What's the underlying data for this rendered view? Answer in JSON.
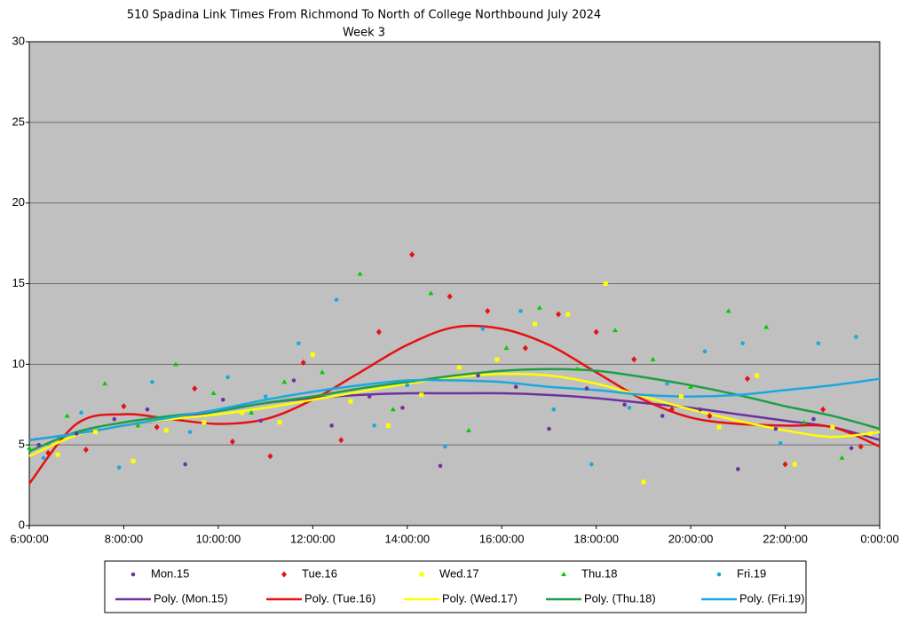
{
  "chart_data": {
    "type": "scatter",
    "title": "510 Spadina Link Times From Richmond To North of College Northbound July 2024",
    "subtitle": "Week 3",
    "xlim": [
      6,
      24
    ],
    "xticks": [
      {
        "value": 6,
        "label": "6:00:00"
      },
      {
        "value": 8,
        "label": "8:00:00"
      },
      {
        "value": 10,
        "label": "10:00:00"
      },
      {
        "value": 12,
        "label": "12:00:00"
      },
      {
        "value": 14,
        "label": "14:00:00"
      },
      {
        "value": 16,
        "label": "16:00:00"
      },
      {
        "value": 18,
        "label": "18:00:00"
      },
      {
        "value": 20,
        "label": "20:00:00"
      },
      {
        "value": 22,
        "label": "22:00:00"
      },
      {
        "value": 24,
        "label": "0:00:00"
      }
    ],
    "ylim": [
      0,
      30
    ],
    "yticks": [
      0,
      5,
      10,
      15,
      20,
      25,
      30
    ],
    "grid": true,
    "legend": "bottom",
    "series": [
      {
        "name": "Mon.15",
        "type": "scatter",
        "marker": "circle",
        "color": "#7030a0",
        "x": [
          6.2,
          7.0,
          7.8,
          8.5,
          9.3,
          10.1,
          10.9,
          11.6,
          12.4,
          13.2,
          13.9,
          14.7,
          15.5,
          16.3,
          17.0,
          17.8,
          18.6,
          19.4,
          20.2,
          21.0,
          21.8,
          22.6,
          23.4
        ],
        "values": [
          5.0,
          5.7,
          6.6,
          7.2,
          3.8,
          7.8,
          6.5,
          9.0,
          6.2,
          8.0,
          7.3,
          3.7,
          9.3,
          8.6,
          6.0,
          8.5,
          7.5,
          6.8,
          7.2,
          3.5,
          6.0,
          6.6,
          4.8
        ]
      },
      {
        "name": "Tue.16",
        "type": "scatter",
        "marker": "diamond",
        "color": "#e81010",
        "x": [
          6.4,
          7.2,
          8.0,
          8.7,
          9.5,
          10.3,
          11.1,
          11.8,
          12.6,
          13.4,
          14.1,
          14.9,
          15.7,
          16.5,
          17.2,
          18.0,
          18.8,
          19.6,
          20.4,
          21.2,
          22.0,
          22.8,
          23.6
        ],
        "values": [
          4.5,
          4.7,
          7.4,
          6.1,
          8.5,
          5.2,
          4.3,
          10.1,
          5.3,
          12.0,
          16.8,
          14.2,
          13.3,
          11.0,
          13.1,
          12.0,
          10.3,
          7.2,
          6.8,
          9.1,
          3.8,
          7.2,
          4.9
        ]
      },
      {
        "name": "Wed.17",
        "type": "scatter",
        "marker": "square",
        "color": "#ffff00",
        "x": [
          6.6,
          7.4,
          8.2,
          8.9,
          9.7,
          10.5,
          11.3,
          12.0,
          12.8,
          13.6,
          14.3,
          15.1,
          15.9,
          16.7,
          17.4,
          18.2,
          19.0,
          19.8,
          20.6,
          21.4,
          22.2,
          23.0,
          23.8
        ],
        "values": [
          4.4,
          5.8,
          4.0,
          5.9,
          6.4,
          7.0,
          6.4,
          10.6,
          7.7,
          6.2,
          8.1,
          9.8,
          10.3,
          12.5,
          13.1,
          15.0,
          2.7,
          8.0,
          6.1,
          9.3,
          3.8,
          6.1,
          5.7
        ]
      },
      {
        "name": "Thu.18",
        "type": "scatter",
        "marker": "triangle",
        "color": "#00cc00",
        "x": [
          6.0,
          6.8,
          7.6,
          8.3,
          9.1,
          9.9,
          10.7,
          11.4,
          12.2,
          13.0,
          13.7,
          14.5,
          15.3,
          16.1,
          16.8,
          17.6,
          18.4,
          19.2,
          20.0,
          20.8,
          21.6,
          22.4,
          23.2
        ],
        "values": [
          4.8,
          6.8,
          8.8,
          6.2,
          10.0,
          8.2,
          7.0,
          8.9,
          9.5,
          15.6,
          7.2,
          14.4,
          5.9,
          11.0,
          13.5,
          9.7,
          12.1,
          10.3,
          8.6,
          13.3,
          12.3,
          6.4,
          4.2
        ]
      },
      {
        "name": "Fri.19",
        "type": "scatter",
        "marker": "circle",
        "color": "#1aa8e0",
        "x": [
          6.3,
          7.1,
          7.9,
          8.6,
          9.4,
          10.2,
          11.0,
          11.7,
          12.5,
          13.3,
          14.0,
          14.8,
          15.6,
          16.4,
          17.1,
          17.9,
          18.7,
          19.5,
          20.3,
          21.1,
          21.9,
          22.7,
          23.5
        ],
        "values": [
          4.2,
          7.0,
          3.6,
          8.9,
          5.8,
          9.2,
          8.0,
          11.3,
          14.0,
          6.2,
          8.7,
          4.9,
          12.2,
          13.3,
          7.2,
          3.8,
          7.3,
          8.8,
          10.8,
          11.3,
          5.1,
          11.3,
          11.7
        ]
      },
      {
        "name": "Poly. (Mon.15)",
        "type": "line",
        "color": "#7030a0",
        "x": [
          6,
          7,
          8,
          9,
          10,
          11,
          12,
          13,
          14,
          15,
          16,
          17,
          18,
          19,
          20,
          21,
          22,
          23,
          24
        ],
        "values": [
          5.3,
          5.7,
          6.2,
          6.6,
          7.1,
          7.6,
          7.9,
          8.1,
          8.2,
          8.2,
          8.2,
          8.1,
          7.9,
          7.6,
          7.3,
          6.9,
          6.5,
          6.1,
          5.3
        ]
      },
      {
        "name": "Poly. (Tue.16)",
        "type": "line",
        "color": "#e81010",
        "x": [
          6,
          7,
          8,
          9,
          10,
          11,
          12,
          13,
          14,
          15,
          16,
          17,
          18,
          19,
          20,
          21,
          22,
          23,
          24
        ],
        "values": [
          2.6,
          6.3,
          6.9,
          6.6,
          6.3,
          6.6,
          7.8,
          9.5,
          11.2,
          12.3,
          12.2,
          11.2,
          9.5,
          7.8,
          6.7,
          6.3,
          6.2,
          6.1,
          4.9
        ]
      },
      {
        "name": "Poly. (Wed.17)",
        "type": "line",
        "color": "#ffff00",
        "x": [
          6,
          7,
          8,
          9,
          10,
          11,
          12,
          13,
          14,
          15,
          16,
          17,
          18,
          19,
          20,
          21,
          22,
          23,
          24
        ],
        "values": [
          4.3,
          5.6,
          6.2,
          6.6,
          6.9,
          7.3,
          7.8,
          8.3,
          8.8,
          9.2,
          9.4,
          9.3,
          8.8,
          8.0,
          7.2,
          6.5,
          5.9,
          5.5,
          5.8
        ]
      },
      {
        "name": "Poly. (Thu.18)",
        "type": "line",
        "color": "#1e9e48",
        "x": [
          6,
          7,
          8,
          9,
          10,
          11,
          12,
          13,
          14,
          15,
          16,
          17,
          18,
          19,
          20,
          21,
          22,
          23,
          24
        ],
        "values": [
          4.6,
          5.8,
          6.4,
          6.8,
          7.1,
          7.6,
          8.0,
          8.5,
          8.9,
          9.3,
          9.6,
          9.7,
          9.6,
          9.2,
          8.7,
          8.1,
          7.4,
          6.8,
          6.0
        ]
      },
      {
        "name": "Poly. (Fri.19)",
        "type": "line",
        "color": "#1aa8e0",
        "x": [
          6,
          7,
          8,
          9,
          10,
          11,
          12,
          13,
          14,
          15,
          16,
          17,
          18,
          19,
          20,
          21,
          22,
          23,
          24
        ],
        "values": [
          5.3,
          5.7,
          6.2,
          6.7,
          7.2,
          7.8,
          8.3,
          8.7,
          9.0,
          9.0,
          8.9,
          8.6,
          8.4,
          8.1,
          8.0,
          8.1,
          8.4,
          8.7,
          9.1
        ]
      }
    ]
  }
}
